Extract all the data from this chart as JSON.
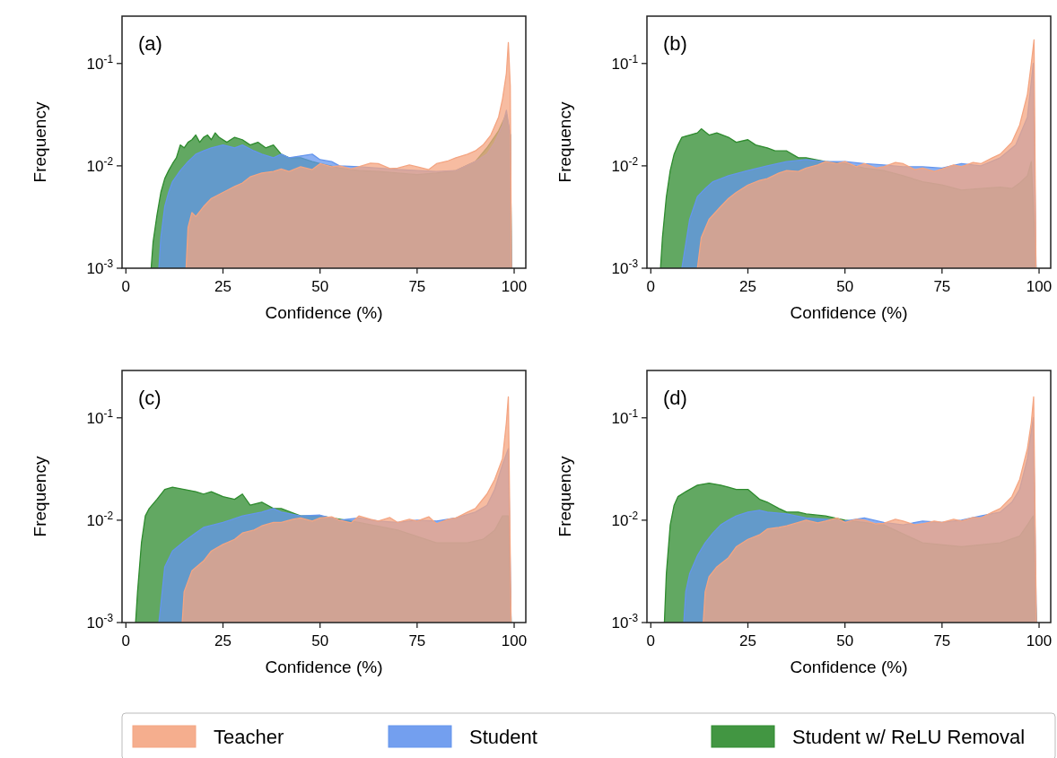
{
  "chart_data": [
    {
      "type": "area",
      "title": "(a)",
      "xlabel": "Confidence (%)",
      "ylabel": "Frequency",
      "log": "y",
      "legend": "bottom",
      "xlim": [
        -1,
        103
      ],
      "xticks": [
        0,
        25,
        50,
        75,
        100
      ],
      "ylim": [
        0.001,
        0.29
      ],
      "yticks": [
        {
          "value": 0.001,
          "label": "10$^{-3}$"
        },
        {
          "value": 0.01,
          "label": "10$^{-2}$"
        },
        {
          "value": 0.1,
          "label": "10$^{-1}$"
        }
      ],
      "series": [
        {
          "name": "Teacher",
          "color": "#f4a582",
          "x": [
            15.5,
            16,
            17,
            18,
            20,
            22,
            25,
            28,
            30,
            32,
            35,
            38,
            40,
            42,
            45,
            48,
            50,
            53,
            55,
            58,
            60,
            63,
            65,
            68,
            70,
            73,
            75,
            78,
            80,
            83,
            85,
            88,
            90,
            92,
            94,
            96,
            97,
            98,
            98.5,
            99,
            99.3
          ],
          "values": [
            0.001,
            0.0025,
            0.0035,
            0.0032,
            0.004,
            0.0048,
            0.0055,
            0.0063,
            0.0068,
            0.0078,
            0.0085,
            0.0088,
            0.0093,
            0.0088,
            0.0098,
            0.0092,
            0.0105,
            0.0098,
            0.01,
            0.0093,
            0.0098,
            0.0106,
            0.0105,
            0.0094,
            0.0095,
            0.0102,
            0.0098,
            0.0092,
            0.0105,
            0.0112,
            0.012,
            0.013,
            0.014,
            0.016,
            0.02,
            0.03,
            0.045,
            0.08,
            0.16,
            0.06,
            0.001
          ]
        },
        {
          "name": "Student",
          "color": "#6495ed",
          "x": [
            8.5,
            9,
            10,
            11,
            12,
            14,
            16,
            18,
            20,
            22,
            25,
            28,
            30,
            33,
            35,
            38,
            40,
            42,
            45,
            48,
            50,
            53,
            55,
            60,
            65,
            70,
            75,
            80,
            85,
            90,
            93,
            95,
            97,
            98,
            99,
            99.3
          ],
          "values": [
            0.001,
            0.002,
            0.004,
            0.0055,
            0.007,
            0.009,
            0.011,
            0.013,
            0.014,
            0.015,
            0.016,
            0.015,
            0.016,
            0.014,
            0.013,
            0.012,
            0.013,
            0.012,
            0.0125,
            0.013,
            0.0115,
            0.011,
            0.01,
            0.0098,
            0.0095,
            0.0092,
            0.009,
            0.0088,
            0.009,
            0.011,
            0.013,
            0.017,
            0.025,
            0.035,
            0.02,
            0.001
          ]
        },
        {
          "name": "Student w/ ReLU Removal",
          "color": "#2e8b2e",
          "x": [
            6.5,
            7,
            8,
            9,
            10,
            11,
            12,
            13,
            14,
            15,
            16,
            17,
            18,
            19,
            20,
            21,
            22,
            23,
            24,
            26,
            28,
            30,
            32,
            34,
            36,
            38,
            40,
            42,
            45,
            48,
            50,
            55,
            60,
            65,
            70,
            75,
            80,
            85,
            90,
            93,
            96,
            98,
            99,
            99.3
          ],
          "values": [
            0.001,
            0.0018,
            0.0033,
            0.0055,
            0.0075,
            0.009,
            0.0105,
            0.012,
            0.016,
            0.015,
            0.017,
            0.018,
            0.02,
            0.017,
            0.019,
            0.02,
            0.018,
            0.021,
            0.019,
            0.017,
            0.019,
            0.018,
            0.016,
            0.017,
            0.015,
            0.016,
            0.013,
            0.012,
            0.012,
            0.011,
            0.0105,
            0.0095,
            0.009,
            0.0088,
            0.0085,
            0.0082,
            0.0085,
            0.009,
            0.011,
            0.015,
            0.022,
            0.032,
            0.02,
            0.001
          ]
        }
      ]
    },
    {
      "type": "area",
      "title": "(b)",
      "xlabel": "Confidence (%)",
      "ylabel": "Frequency",
      "log": "y",
      "xlim": [
        -1,
        103
      ],
      "xticks": [
        0,
        25,
        50,
        75,
        100
      ],
      "ylim": [
        0.001,
        0.29
      ],
      "yticks": [
        {
          "value": 0.001,
          "label": "10$^{-3}$"
        },
        {
          "value": 0.01,
          "label": "10$^{-2}$"
        },
        {
          "value": 0.1,
          "label": "10$^{-1}$"
        }
      ],
      "series": [
        {
          "color": "#f4a582",
          "x": [
            12,
            13,
            15,
            18,
            20,
            22,
            25,
            28,
            30,
            33,
            35,
            38,
            40,
            43,
            45,
            48,
            50,
            53,
            55,
            58,
            60,
            63,
            65,
            68,
            70,
            73,
            75,
            78,
            80,
            83,
            85,
            88,
            90,
            93,
            95,
            97,
            98,
            98.7,
            99.2
          ],
          "values": [
            0.001,
            0.002,
            0.003,
            0.004,
            0.0048,
            0.0055,
            0.0065,
            0.0072,
            0.0075,
            0.0085,
            0.009,
            0.0088,
            0.0095,
            0.0102,
            0.011,
            0.0105,
            0.011,
            0.0098,
            0.0105,
            0.0095,
            0.0098,
            0.0108,
            0.0105,
            0.0092,
            0.0095,
            0.0088,
            0.0093,
            0.0102,
            0.0098,
            0.0108,
            0.0105,
            0.012,
            0.013,
            0.017,
            0.025,
            0.05,
            0.1,
            0.17,
            0.001
          ]
        },
        {
          "color": "#6495ed",
          "x": [
            8,
            10,
            12,
            14,
            16,
            20,
            25,
            30,
            35,
            40,
            45,
            50,
            55,
            60,
            65,
            70,
            75,
            80,
            85,
            90,
            94,
            97,
            98.5,
            99.2
          ],
          "values": [
            0.001,
            0.003,
            0.005,
            0.006,
            0.007,
            0.008,
            0.009,
            0.01,
            0.011,
            0.0115,
            0.011,
            0.011,
            0.0105,
            0.0102,
            0.0098,
            0.0098,
            0.0095,
            0.0105,
            0.01,
            0.012,
            0.016,
            0.03,
            0.1,
            0.001
          ]
        },
        {
          "color": "#2e8b2e",
          "x": [
            2.5,
            3,
            4,
            5,
            6,
            7,
            8,
            10,
            12,
            13,
            15,
            17,
            20,
            22,
            25,
            27,
            30,
            32,
            35,
            38,
            40,
            45,
            50,
            55,
            60,
            65,
            70,
            75,
            80,
            85,
            90,
            93,
            95,
            97,
            98,
            99.2
          ],
          "values": [
            0.001,
            0.002,
            0.005,
            0.009,
            0.013,
            0.016,
            0.019,
            0.02,
            0.021,
            0.023,
            0.02,
            0.021,
            0.019,
            0.017,
            0.018,
            0.016,
            0.015,
            0.014,
            0.014,
            0.012,
            0.012,
            0.011,
            0.0105,
            0.0095,
            0.009,
            0.008,
            0.007,
            0.0065,
            0.0058,
            0.006,
            0.0062,
            0.006,
            0.0068,
            0.008,
            0.011,
            0.001
          ]
        }
      ]
    },
    {
      "type": "area",
      "title": "(c)",
      "xlabel": "Confidence (%)",
      "ylabel": "Frequency",
      "log": "y",
      "xlim": [
        -1,
        103
      ],
      "xticks": [
        0,
        25,
        50,
        75,
        100
      ],
      "ylim": [
        0.001,
        0.29
      ],
      "yticks": [
        {
          "value": 0.001,
          "label": "10$^{-3}$"
        },
        {
          "value": 0.01,
          "label": "10$^{-2}$"
        },
        {
          "value": 0.1,
          "label": "10$^{-1}$"
        }
      ],
      "series": [
        {
          "color": "#f4a582",
          "x": [
            14.5,
            15,
            17,
            20,
            22,
            25,
            28,
            30,
            33,
            35,
            38,
            40,
            43,
            45,
            48,
            50,
            53,
            55,
            58,
            60,
            63,
            65,
            68,
            70,
            73,
            75,
            78,
            80,
            83,
            85,
            88,
            90,
            93,
            95,
            97,
            98,
            98.5,
            99.2
          ],
          "values": [
            0.001,
            0.002,
            0.0032,
            0.004,
            0.005,
            0.0058,
            0.0065,
            0.0075,
            0.008,
            0.0088,
            0.0095,
            0.0095,
            0.0102,
            0.0105,
            0.0098,
            0.0105,
            0.0108,
            0.01,
            0.0094,
            0.011,
            0.0102,
            0.0098,
            0.0106,
            0.0095,
            0.0102,
            0.0098,
            0.0108,
            0.0092,
            0.0102,
            0.0105,
            0.012,
            0.013,
            0.018,
            0.025,
            0.04,
            0.09,
            0.16,
            0.001
          ]
        },
        {
          "color": "#6495ed",
          "x": [
            8.5,
            9,
            10,
            12,
            15,
            18,
            20,
            25,
            30,
            35,
            38,
            40,
            45,
            50,
            55,
            60,
            65,
            70,
            75,
            80,
            85,
            90,
            93,
            95,
            97,
            98.5,
            99.2
          ],
          "values": [
            0.001,
            0.0015,
            0.0035,
            0.005,
            0.0062,
            0.0075,
            0.0085,
            0.0095,
            0.011,
            0.012,
            0.013,
            0.012,
            0.011,
            0.0112,
            0.01,
            0.0105,
            0.0098,
            0.0095,
            0.01,
            0.0098,
            0.0105,
            0.012,
            0.014,
            0.02,
            0.035,
            0.05,
            0.001
          ]
        },
        {
          "color": "#2e8b2e",
          "x": [
            2.5,
            3,
            4,
            5,
            6,
            8,
            10,
            12,
            15,
            18,
            20,
            22,
            25,
            28,
            30,
            32,
            35,
            38,
            40,
            45,
            50,
            60,
            70,
            80,
            88,
            92,
            95,
            97,
            98.5,
            99.2
          ],
          "values": [
            0.001,
            0.002,
            0.006,
            0.011,
            0.013,
            0.016,
            0.02,
            0.021,
            0.02,
            0.019,
            0.018,
            0.019,
            0.017,
            0.016,
            0.018,
            0.014,
            0.015,
            0.013,
            0.013,
            0.011,
            0.011,
            0.0095,
            0.008,
            0.006,
            0.006,
            0.0065,
            0.008,
            0.011,
            0.011,
            0.001
          ]
        }
      ]
    },
    {
      "type": "area",
      "title": "(d)",
      "xlabel": "Confidence (%)",
      "ylabel": "Frequency",
      "log": "y",
      "xlim": [
        -1,
        103
      ],
      "xticks": [
        0,
        25,
        50,
        75,
        100
      ],
      "ylim": [
        0.001,
        0.29
      ],
      "yticks": [
        {
          "value": 0.001,
          "label": "10$^{-3}$"
        },
        {
          "value": 0.01,
          "label": "10$^{-2}$"
        },
        {
          "value": 0.1,
          "label": "10$^{-1}$"
        }
      ],
      "series": [
        {
          "color": "#f4a582",
          "x": [
            13.5,
            14,
            15,
            17,
            20,
            22,
            25,
            28,
            30,
            33,
            35,
            38,
            40,
            43,
            45,
            48,
            50,
            53,
            55,
            58,
            60,
            63,
            65,
            68,
            70,
            73,
            75,
            78,
            80,
            83,
            85,
            88,
            90,
            93,
            95,
            97,
            98,
            98.6,
            99.3
          ],
          "values": [
            0.001,
            0.002,
            0.0028,
            0.0035,
            0.0043,
            0.0055,
            0.0065,
            0.0072,
            0.0082,
            0.0085,
            0.0088,
            0.0095,
            0.01,
            0.0094,
            0.0098,
            0.0105,
            0.0095,
            0.0102,
            0.01,
            0.0092,
            0.0093,
            0.0102,
            0.0098,
            0.009,
            0.0092,
            0.0098,
            0.0095,
            0.0102,
            0.0098,
            0.0106,
            0.0105,
            0.012,
            0.013,
            0.017,
            0.025,
            0.05,
            0.09,
            0.16,
            0.001
          ]
        },
        {
          "color": "#6495ed",
          "x": [
            8.5,
            9,
            10,
            12,
            14,
            16,
            18,
            20,
            22,
            25,
            28,
            30,
            35,
            40,
            45,
            50,
            55,
            60,
            65,
            70,
            75,
            80,
            85,
            90,
            93,
            95,
            97,
            98.5,
            99.3
          ],
          "values": [
            0.001,
            0.002,
            0.003,
            0.0045,
            0.006,
            0.0075,
            0.009,
            0.01,
            0.011,
            0.012,
            0.0125,
            0.012,
            0.0115,
            0.0105,
            0.0102,
            0.0098,
            0.0105,
            0.0095,
            0.009,
            0.0098,
            0.0095,
            0.01,
            0.011,
            0.012,
            0.015,
            0.02,
            0.04,
            0.1,
            0.001
          ]
        },
        {
          "color": "#2e8b2e",
          "x": [
            3.5,
            4,
            5,
            6,
            7,
            9,
            12,
            15,
            18,
            20,
            22,
            25,
            28,
            30,
            33,
            35,
            38,
            40,
            45,
            50,
            60,
            70,
            80,
            90,
            95,
            97,
            98.5,
            99.3
          ],
          "values": [
            0.001,
            0.003,
            0.009,
            0.014,
            0.017,
            0.019,
            0.022,
            0.023,
            0.022,
            0.021,
            0.02,
            0.02,
            0.016,
            0.015,
            0.013,
            0.012,
            0.012,
            0.0115,
            0.011,
            0.01,
            0.009,
            0.006,
            0.0055,
            0.006,
            0.007,
            0.009,
            0.011,
            0.001
          ]
        }
      ]
    }
  ]
}
